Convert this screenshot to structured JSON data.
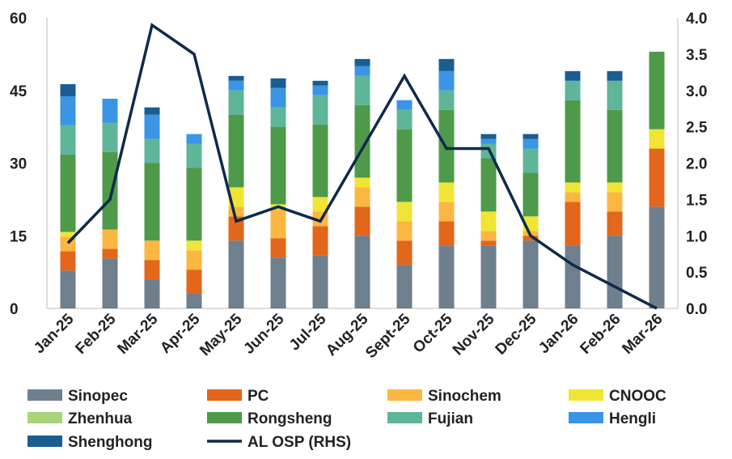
{
  "chart_data": {
    "type": "bar",
    "stacked": true,
    "categories": [
      "Jan-25",
      "Feb-25",
      "Mar-25",
      "Apr-25",
      "May-25",
      "Jun-25",
      "Jul-25",
      "Aug-25",
      "Sept-25",
      "Oct-25",
      "Nov-25",
      "Dec-25",
      "Jan-26",
      "Feb-26",
      "Mar-26"
    ],
    "y_left": {
      "min": 0,
      "max": 60,
      "ticks": [
        "0",
        "15",
        "30",
        "45",
        "60"
      ]
    },
    "y_right": {
      "min": 0,
      "max": 4,
      "ticks": [
        "0.0",
        "0.5",
        "1.0",
        "1.5",
        "2.0",
        "2.5",
        "3.0",
        "3.5",
        "4.0"
      ]
    },
    "series": [
      {
        "name": "Sinopec",
        "color": "#6e7f8d",
        "values": [
          7.8,
          10.3,
          6,
          3,
          14,
          10.5,
          11,
          15,
          9,
          13,
          13,
          14,
          13,
          15,
          21
        ]
      },
      {
        "name": "PC",
        "color": "#e2661b",
        "values": [
          4,
          2,
          4,
          5,
          5,
          4,
          6,
          6,
          5,
          5,
          1,
          1,
          9,
          5,
          12
        ]
      },
      {
        "name": "Sinochem",
        "color": "#fbb741",
        "values": [
          3,
          4,
          4,
          4,
          2,
          6,
          3,
          4,
          4,
          4,
          2,
          1,
          2,
          4,
          0
        ]
      },
      {
        "name": "CNOOC",
        "color": "#f0e534",
        "values": [
          1,
          0,
          0,
          2,
          4,
          1,
          3,
          2,
          4,
          4,
          4,
          3,
          2,
          2,
          4
        ]
      },
      {
        "name": "Zhenhua",
        "color": "#a8d47a",
        "values": [
          0,
          0,
          0,
          0,
          0,
          0,
          0,
          0,
          0,
          0,
          0,
          0,
          0,
          0,
          0
        ]
      },
      {
        "name": "Rongsheng",
        "color": "#4e9a4a",
        "values": [
          16,
          16,
          16,
          15,
          15,
          16,
          15,
          15,
          15,
          15,
          11,
          9,
          17,
          15,
          16
        ]
      },
      {
        "name": "Fujian",
        "color": "#5fb59a",
        "values": [
          6,
          6,
          5,
          5,
          5,
          4,
          6,
          6,
          4,
          4,
          3,
          5,
          4,
          6,
          0
        ]
      },
      {
        "name": "Hengli",
        "color": "#3a95e4",
        "values": [
          6,
          5,
          5,
          2,
          2,
          4,
          2,
          2,
          2,
          4,
          1,
          2,
          0,
          0,
          0
        ]
      },
      {
        "name": "Shenghong",
        "color": "#1b5c91",
        "values": [
          2.5,
          0,
          1.5,
          0,
          1,
          2,
          1,
          1.5,
          0,
          2.5,
          1,
          1,
          2,
          2,
          0
        ]
      }
    ],
    "line": {
      "name": "AL OSP (RHS)",
      "color": "#10294a",
      "axis": "right",
      "values": [
        0.9,
        1.5,
        3.9,
        3.5,
        1.2,
        1.4,
        1.2,
        2.2,
        3.2,
        2.2,
        2.2,
        1.0,
        0.6,
        0.3,
        0.0
      ]
    },
    "legend": [
      "Sinopec",
      "PC",
      "Sinochem",
      "CNOOC",
      "Zhenhua",
      "Rongsheng",
      "Fujian",
      "Hengli",
      "Shenghong",
      "AL OSP (RHS)"
    ],
    "legend_position": "bottom",
    "grid": false,
    "title": "",
    "xlabel": "",
    "ylabel": ""
  }
}
